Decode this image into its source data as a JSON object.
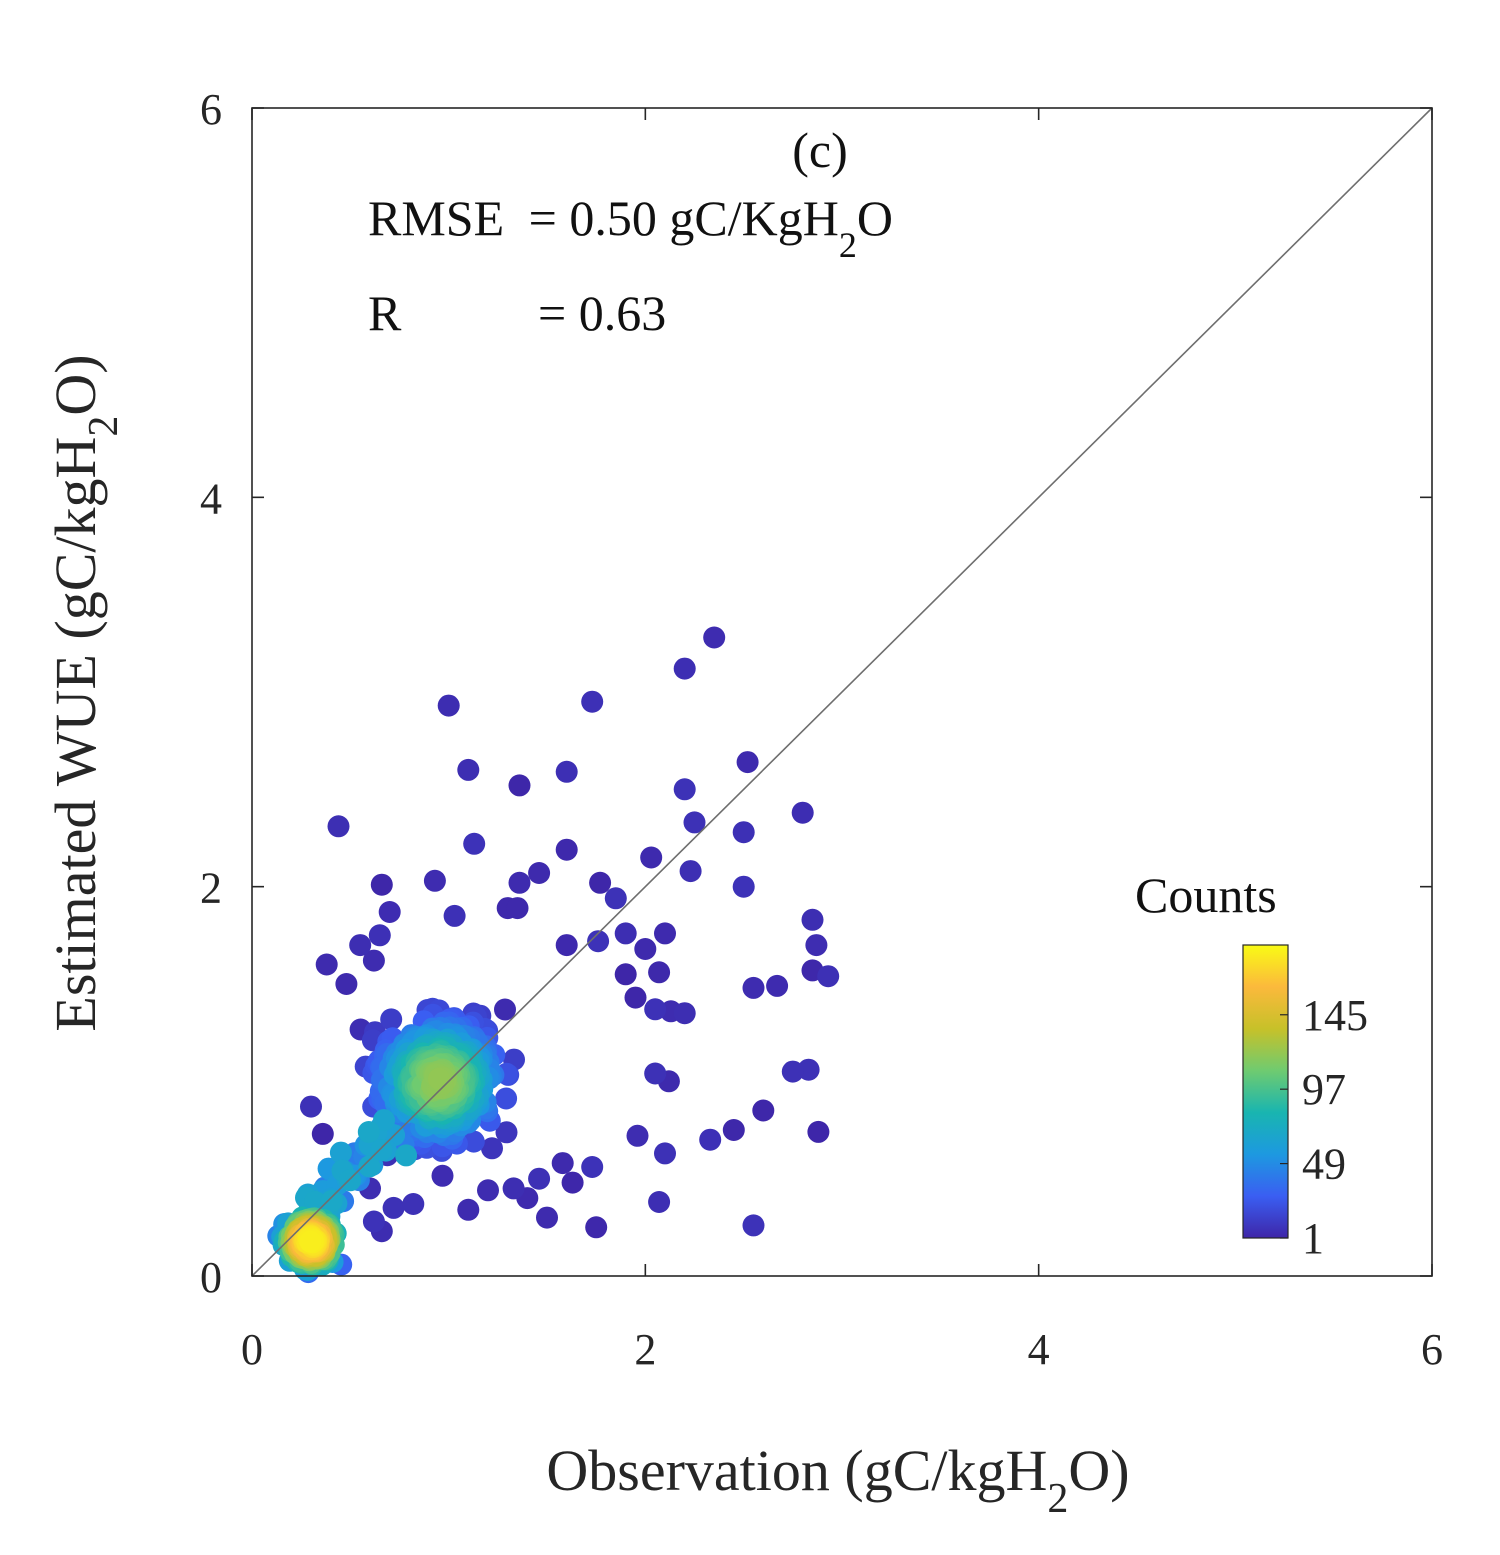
{
  "chart_data": {
    "type": "scatter",
    "panel_label": "(c)",
    "xlabel": {
      "main": "Observation (gC/kgH",
      "sub": "2",
      "tail": "O)"
    },
    "ylabel": {
      "main": "Estimated WUE (gC/kgH",
      "sub": "2",
      "tail": "O)"
    },
    "xlim": [
      0,
      6
    ],
    "ylim": [
      0,
      6
    ],
    "xticks": [
      "0",
      "2",
      "4",
      "6"
    ],
    "yticks": [
      "0",
      "2",
      "4",
      "6"
    ],
    "grid": false,
    "reference_line": "1:1",
    "annotations": {
      "rmse_label": "RMSE",
      "rmse_value": "= 0.50 gC/KgH",
      "rmse_sub": "2",
      "rmse_tail": "O",
      "r_label": "R",
      "r_value": "= 0.63"
    },
    "colorbar": {
      "title": "Counts",
      "ticks": [
        "1",
        "49",
        "97",
        "145"
      ],
      "tick_values": [
        1,
        49,
        97,
        145
      ],
      "range": [
        1,
        190
      ],
      "colormap": [
        "#3e26a8",
        "#3a5ef2",
        "#1d99e0",
        "#19b5b0",
        "#6fcb70",
        "#c7c129",
        "#fbb93c",
        "#f9fb15"
      ]
    },
    "outliers": [
      [
        2.35,
        3.28
      ],
      [
        2.2,
        3.12
      ],
      [
        1.73,
        2.95
      ],
      [
        1.0,
        2.93
      ],
      [
        2.52,
        2.64
      ],
      [
        1.1,
        2.6
      ],
      [
        1.6,
        2.59
      ],
      [
        1.36,
        2.52
      ],
      [
        2.2,
        2.5
      ],
      [
        2.8,
        2.38
      ],
      [
        2.25,
        2.33
      ],
      [
        0.44,
        2.31
      ],
      [
        2.5,
        2.28
      ],
      [
        1.13,
        2.22
      ],
      [
        1.6,
        2.19
      ],
      [
        2.03,
        2.15
      ],
      [
        1.46,
        2.07
      ],
      [
        2.23,
        2.08
      ],
      [
        1.36,
        2.02
      ],
      [
        0.93,
        2.03
      ],
      [
        0.66,
        2.01
      ],
      [
        1.77,
        2.02
      ],
      [
        2.5,
        2.0
      ],
      [
        1.85,
        1.94
      ],
      [
        1.3,
        1.89
      ],
      [
        1.35,
        1.89
      ],
      [
        2.85,
        1.83
      ],
      [
        0.7,
        1.87
      ],
      [
        1.03,
        1.85
      ],
      [
        0.65,
        1.75
      ],
      [
        2.87,
        1.7
      ],
      [
        1.76,
        1.72
      ],
      [
        1.6,
        1.7
      ],
      [
        1.9,
        1.76
      ],
      [
        2.1,
        1.76
      ],
      [
        2.0,
        1.68
      ],
      [
        1.9,
        1.55
      ],
      [
        2.07,
        1.56
      ],
      [
        2.85,
        1.57
      ],
      [
        2.93,
        1.54
      ],
      [
        2.55,
        1.48
      ],
      [
        2.67,
        1.49
      ],
      [
        1.95,
        1.43
      ],
      [
        2.05,
        1.37
      ],
      [
        2.13,
        1.36
      ],
      [
        2.2,
        1.35
      ],
      [
        2.05,
        1.04
      ],
      [
        2.12,
        1.0
      ],
      [
        2.75,
        1.05
      ],
      [
        2.83,
        1.06
      ],
      [
        2.6,
        0.85
      ],
      [
        2.45,
        0.75
      ],
      [
        2.33,
        0.7
      ],
      [
        2.88,
        0.74
      ],
      [
        1.96,
        0.72
      ],
      [
        2.1,
        0.63
      ],
      [
        2.07,
        0.38
      ],
      [
        2.55,
        0.26
      ],
      [
        1.75,
        0.25
      ],
      [
        1.5,
        0.3
      ],
      [
        1.33,
        0.45
      ],
      [
        1.2,
        0.44
      ],
      [
        1.1,
        0.34
      ],
      [
        0.62,
        0.28
      ],
      [
        0.66,
        0.23
      ],
      [
        1.63,
        0.48
      ],
      [
        1.58,
        0.58
      ],
      [
        1.73,
        0.56
      ],
      [
        1.46,
        0.5
      ],
      [
        1.4,
        0.4
      ],
      [
        0.55,
        1.7
      ],
      [
        0.62,
        1.62
      ],
      [
        0.38,
        1.6
      ],
      [
        0.48,
        1.5
      ],
      [
        0.3,
        0.87
      ],
      [
        0.36,
        0.73
      ],
      [
        0.5,
        0.6
      ],
      [
        0.42,
        0.53
      ],
      [
        0.6,
        0.45
      ],
      [
        0.72,
        0.35
      ],
      [
        0.82,
        0.37
      ]
    ]
  }
}
